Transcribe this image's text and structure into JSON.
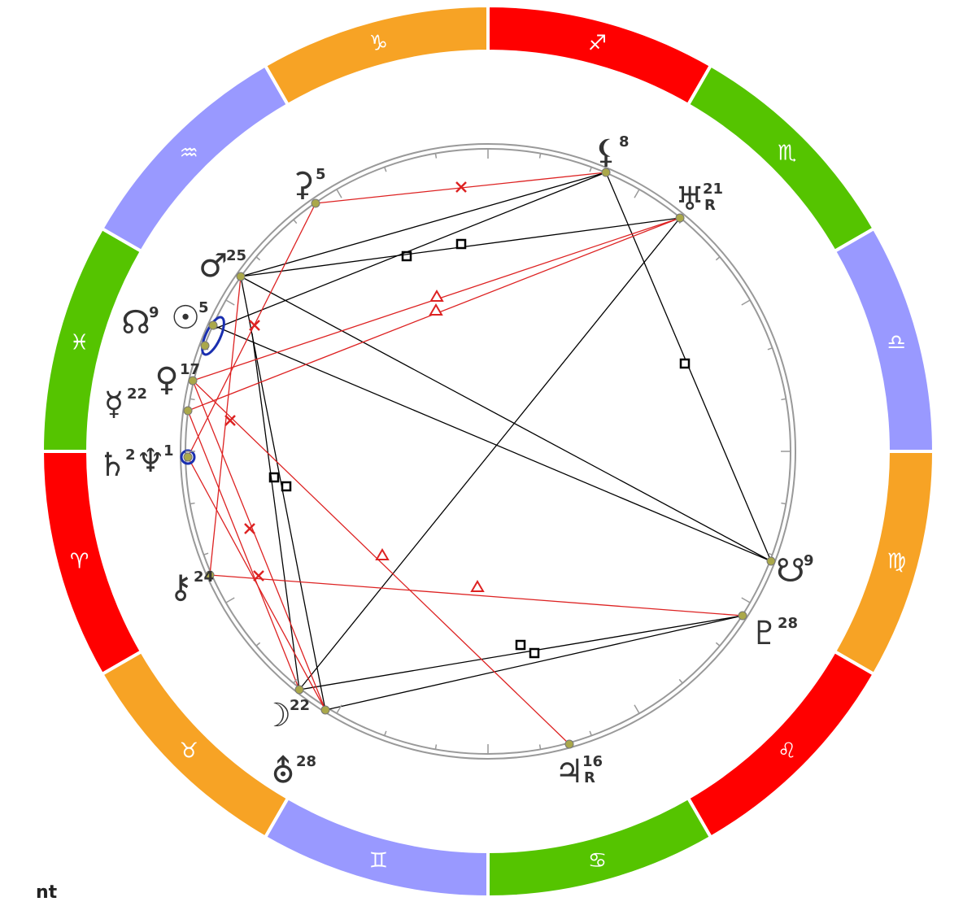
{
  "signs": [
    "♐",
    "♏",
    "♎",
    "♍",
    "♌",
    "♋",
    "♊",
    "♉",
    "♈",
    "♓",
    "♒",
    "♑"
  ],
  "planets": [
    {
      "glyph": "⚸",
      "degree": 8
    },
    {
      "glyph": "♅",
      "degree": 21,
      "retro": "R"
    },
    {
      "glyph": "⚳",
      "degree": 5
    },
    {
      "glyph": "♂",
      "degree": 25
    },
    {
      "glyph": "☊",
      "degree": 9
    },
    {
      "glyph": "☉",
      "degree": 5
    },
    {
      "glyph": "♀",
      "degree": 17
    },
    {
      "glyph": "☿",
      "degree": 22
    },
    {
      "glyph": "♄",
      "degree": 2
    },
    {
      "glyph": "♆",
      "degree": 1
    },
    {
      "glyph": "⚷",
      "degree": 24
    },
    {
      "glyph": "☽",
      "degree": 22
    },
    {
      "glyph": "⛢",
      "degree": 28
    },
    {
      "glyph": "♃",
      "degree": 16,
      "retro": "R"
    },
    {
      "glyph": "☋",
      "degree": 9
    },
    {
      "glyph": "♇",
      "degree": 28
    }
  ],
  "footer": "nt"
}
